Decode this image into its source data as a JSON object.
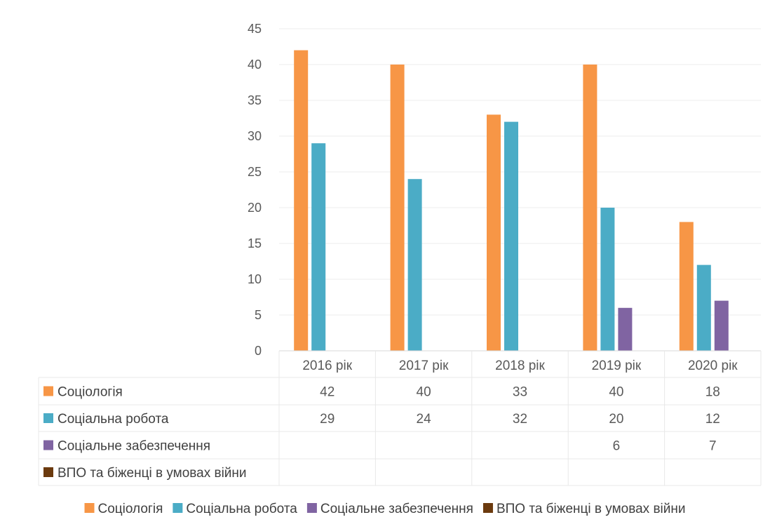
{
  "chart_data": {
    "type": "bar",
    "categories": [
      "2016 рік",
      "2017 рік",
      "2018 рік",
      "2019 рік",
      "2020 рік"
    ],
    "series": [
      {
        "name": "Соціологія",
        "color": "#F79646",
        "values": [
          42,
          40,
          33,
          40,
          18
        ]
      },
      {
        "name": "Соціальна робота",
        "color": "#4BACC6",
        "values": [
          29,
          24,
          32,
          20,
          12
        ]
      },
      {
        "name": "Соціальне забезпечення",
        "color": "#8064A2",
        "values": [
          null,
          null,
          null,
          6,
          7
        ]
      },
      {
        "name": "ВПО та біженці в умовах війни",
        "color": "#6B3A0E",
        "values": [
          null,
          null,
          null,
          null,
          null
        ]
      }
    ],
    "yticks": [
      0,
      5,
      10,
      15,
      20,
      25,
      30,
      35,
      40,
      45
    ],
    "ylim": [
      0,
      45
    ],
    "grid": true,
    "legend": "bottom",
    "data_table": true
  }
}
